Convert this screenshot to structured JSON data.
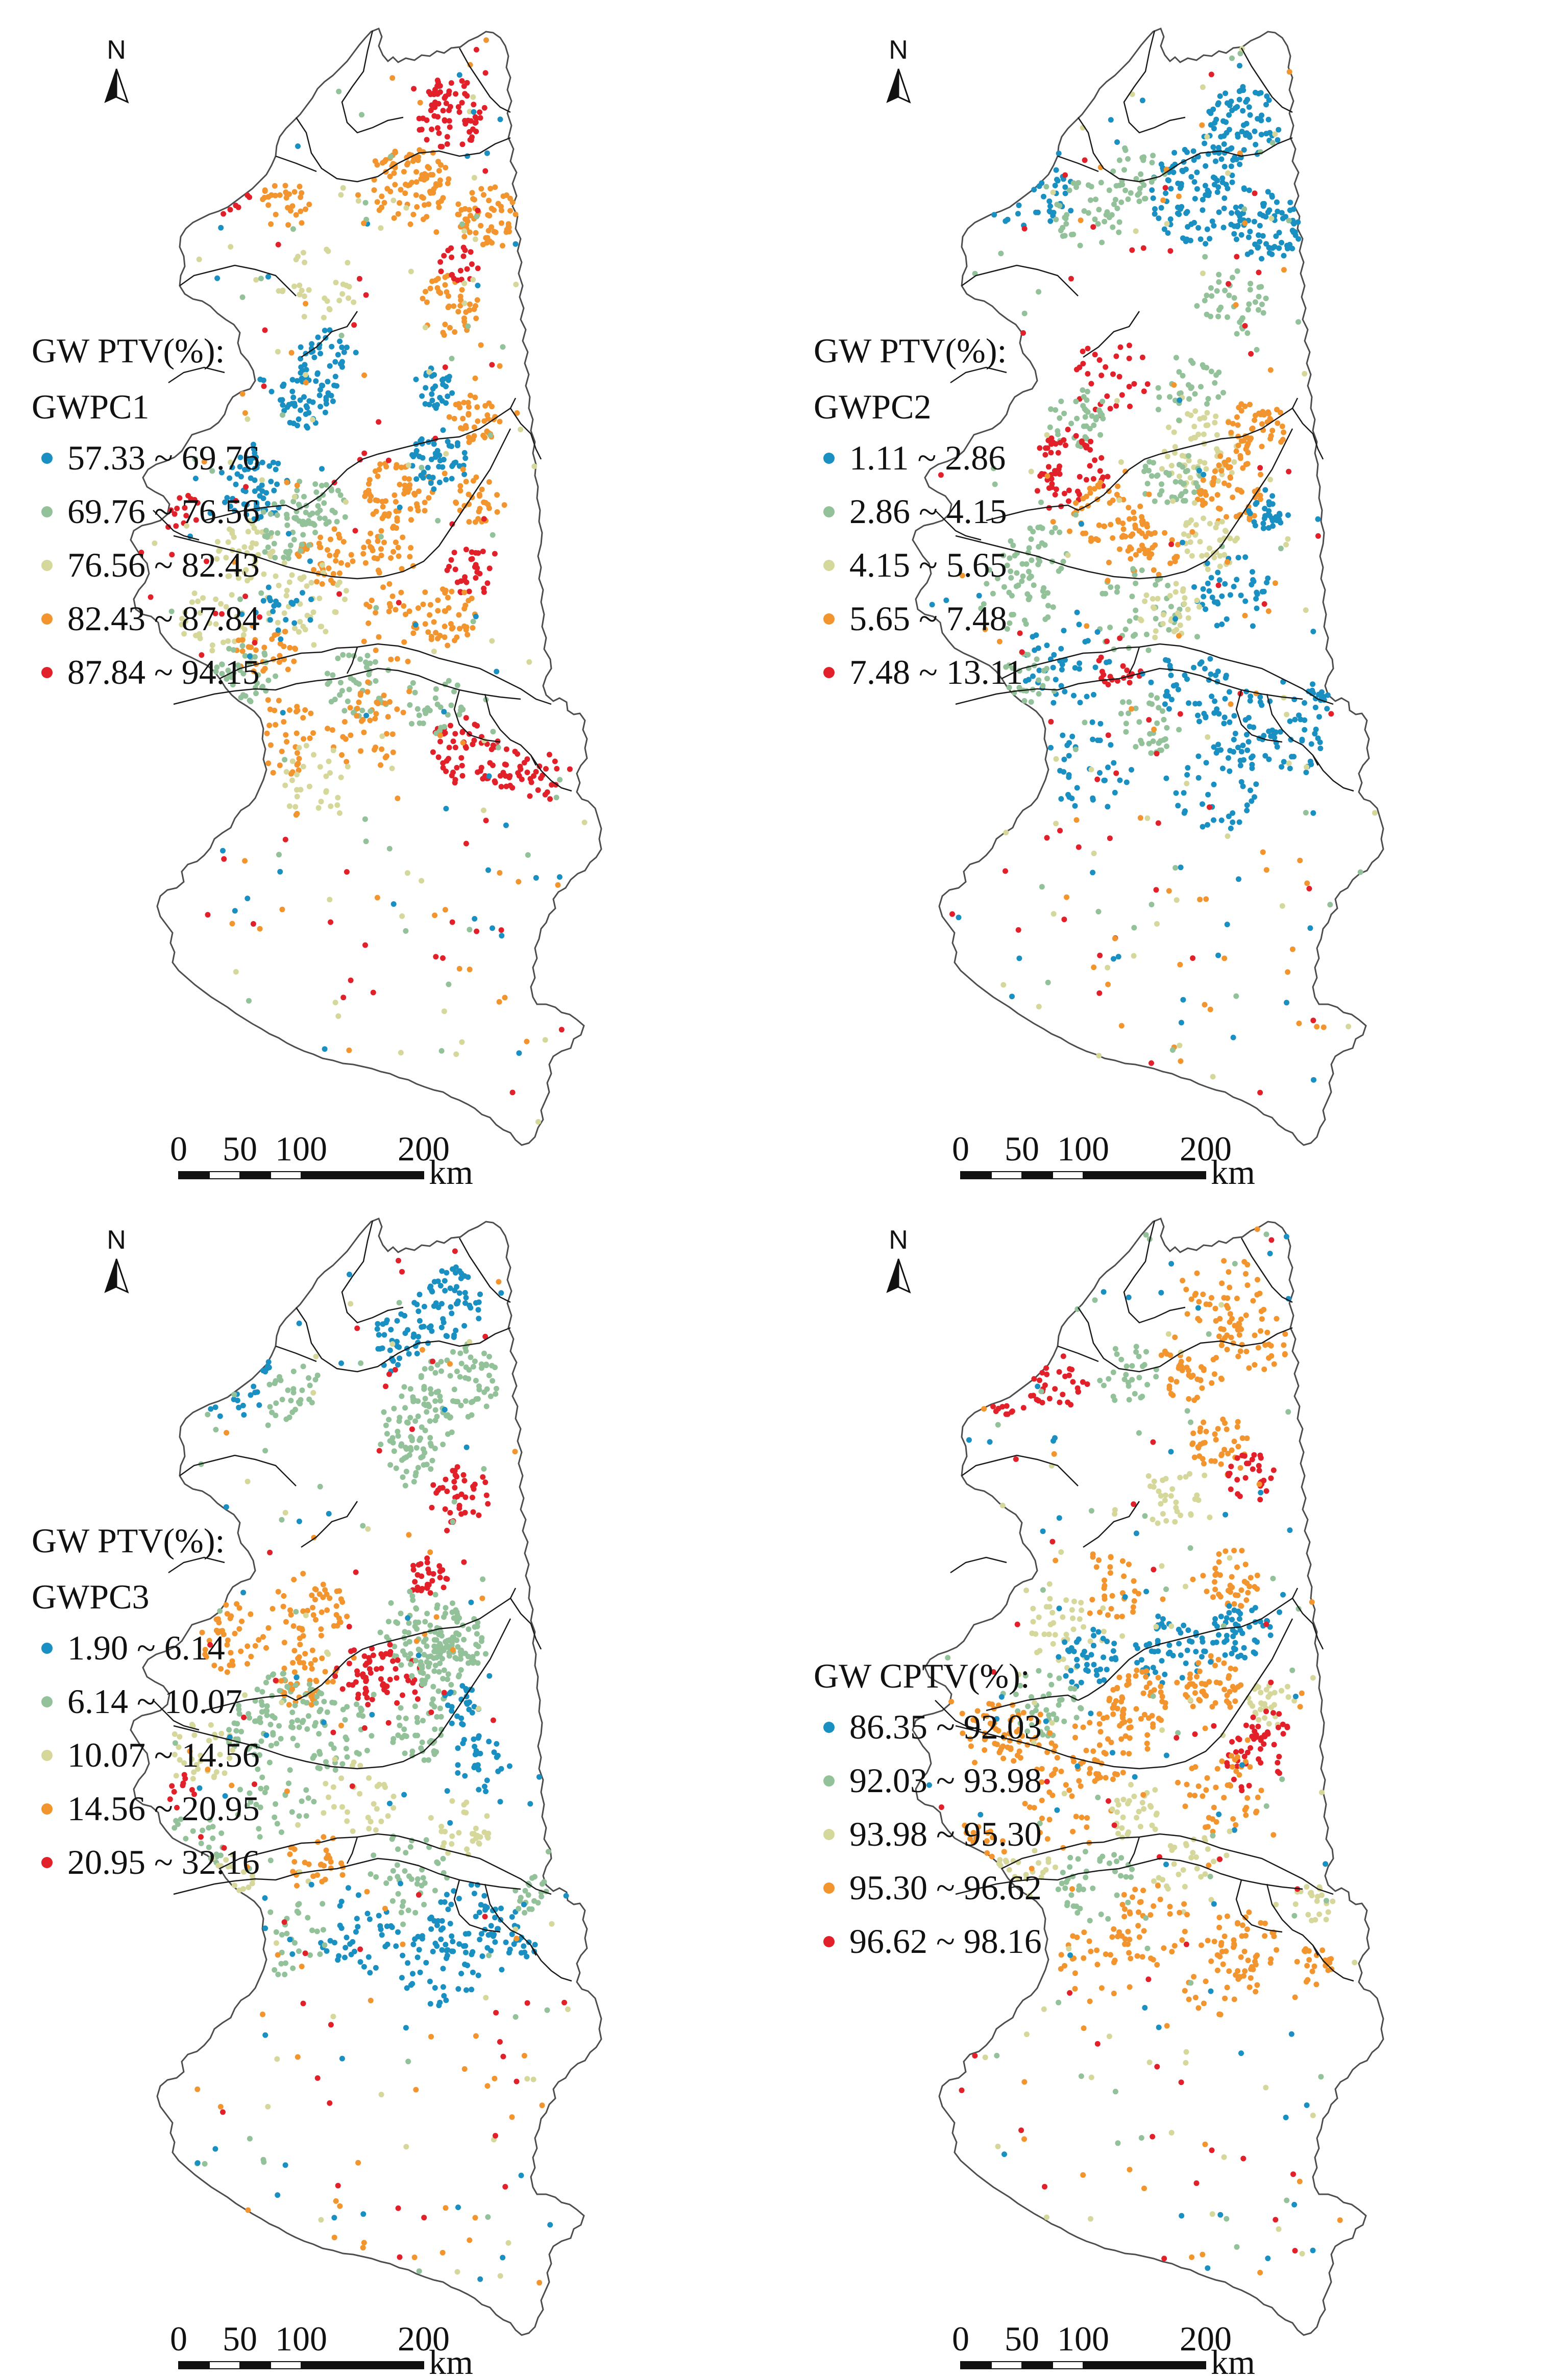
{
  "colors": {
    "class1": "#1a8fc1",
    "class2": "#93c199",
    "class3": "#d6d79a",
    "class4": "#f2952e",
    "class5": "#e2202a",
    "outline": "#4d4d4d",
    "inner_boundary": "#1a1a1a"
  },
  "north_arrow": {
    "label": "N",
    "icon": "north-arrow-icon"
  },
  "scale_bar": {
    "ticks": [
      "0",
      "50",
      "100",
      "200"
    ],
    "tick_km": [
      0,
      50,
      100,
      200
    ],
    "unit": "km"
  },
  "maps": [
    {
      "heading": "GW PTV(%):",
      "subheading": "GWPC1",
      "classes": [
        {
          "label": "57.33 ~ 69.76",
          "color": "#1a8fc1"
        },
        {
          "label": "69.76 ~ 76.56",
          "color": "#93c199"
        },
        {
          "label": "76.56 ~ 82.43",
          "color": "#d6d79a"
        },
        {
          "label": "82.43 ~ 87.84",
          "color": "#f2952e"
        },
        {
          "label": "87.84 ~ 94.15",
          "color": "#e2202a"
        }
      ]
    },
    {
      "heading": "GW PTV(%):",
      "subheading": "GWPC2",
      "classes": [
        {
          "label": "1.11 ~ 2.86",
          "color": "#1a8fc1"
        },
        {
          "label": "2.86 ~ 4.15",
          "color": "#93c199"
        },
        {
          "label": "4.15 ~ 5.65",
          "color": "#d6d79a"
        },
        {
          "label": "5.65 ~ 7.48",
          "color": "#f2952e"
        },
        {
          "label": "7.48 ~ 13.11",
          "color": "#e2202a"
        }
      ]
    },
    {
      "heading": "GW PTV(%):",
      "subheading": "GWPC3",
      "classes": [
        {
          "label": "1.90 ~ 6.14",
          "color": "#1a8fc1"
        },
        {
          "label": "6.14 ~ 10.07",
          "color": "#93c199"
        },
        {
          "label": "10.07 ~ 14.56",
          "color": "#d6d79a"
        },
        {
          "label": "14.56 ~ 20.95",
          "color": "#f2952e"
        },
        {
          "label": "20.95 ~ 32.16",
          "color": "#e2202a"
        }
      ]
    },
    {
      "heading": "",
      "subheading": "GW CPTV(%):",
      "classes": [
        {
          "label": "86.35 ~ 92.03",
          "color": "#1a8fc1"
        },
        {
          "label": "92.03 ~ 93.98",
          "color": "#93c199"
        },
        {
          "label": "93.98 ~ 95.30",
          "color": "#d6d79a"
        },
        {
          "label": "95.30 ~ 96.62",
          "color": "#f2952e"
        },
        {
          "label": "96.62 ~ 98.16",
          "color": "#e2202a"
        }
      ]
    }
  ]
}
